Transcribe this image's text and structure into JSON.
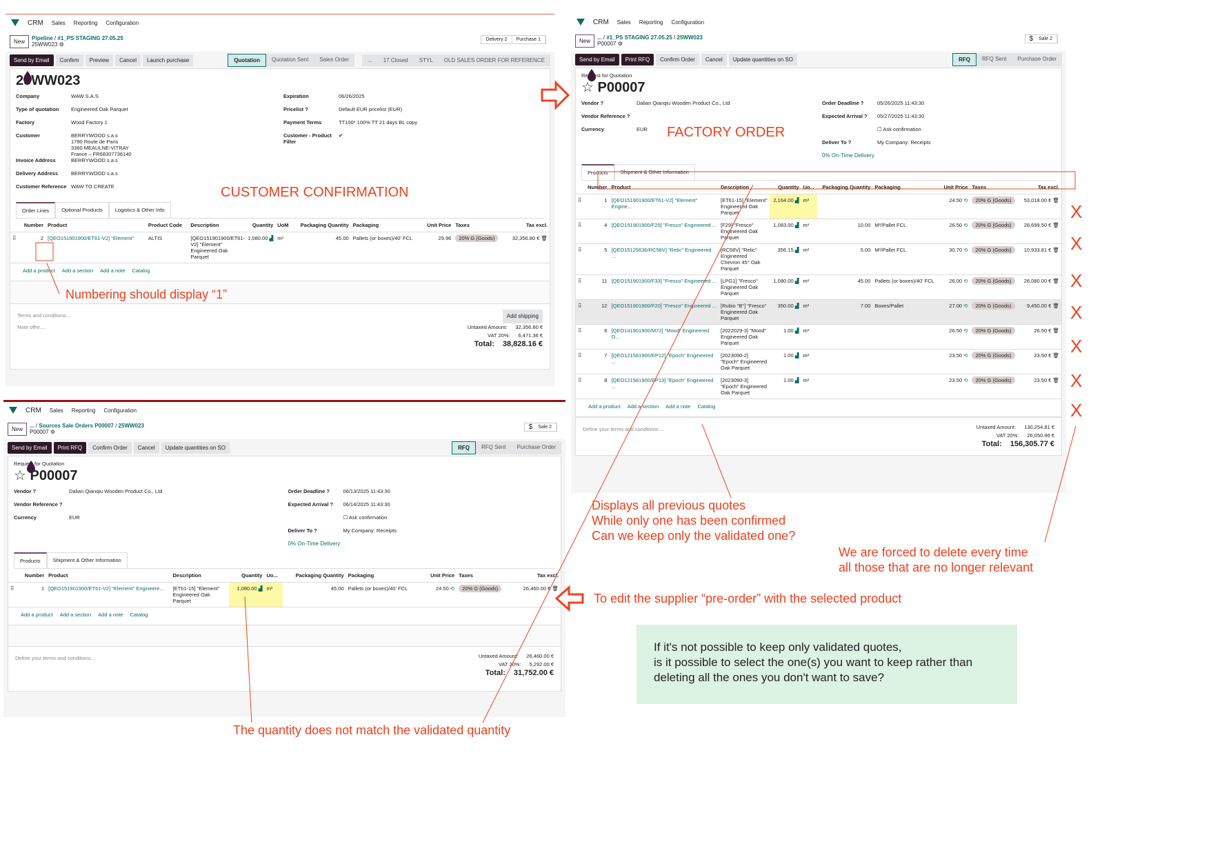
{
  "nav": {
    "app": "CRM",
    "items": [
      "Sales",
      "Reporting",
      "Configuration"
    ]
  },
  "so": {
    "new": "New",
    "crumbs": [
      "Pipeline",
      "#1_PS STAGING 27.05.25"
    ],
    "record": "25WW023",
    "smart": [
      "Delivery 2",
      "Purchase 1"
    ],
    "actions": [
      "Send by Email",
      "Confirm",
      "Preview",
      "Cancel",
      "Launch purchase"
    ],
    "status": [
      "Quotation",
      "Quotation Sent",
      "Sales Order"
    ],
    "status2": [
      "...",
      "17.Closed",
      "STYL",
      "OLD SALES ORDER FOR REFERENCE"
    ],
    "title": "25WW023",
    "left": [
      [
        "Company",
        "WAW S.A.S"
      ],
      [
        "Type of quotation",
        "Engineered Oak Parquet"
      ],
      [
        "Factory",
        "Wood Factory 1"
      ],
      [
        "Customer",
        "BERRYWOOD s.a.s\n1790 Route de Paris\n3360 MEAULNE-VITRAY\nFrance – FR68307736140"
      ],
      [
        "Invoice Address",
        "BERRYWOOD s.a.s"
      ],
      [
        "Delivery Address",
        "BERRYWOOD s.a.s"
      ],
      [
        "Customer Reference",
        "WAW TO CREATE"
      ]
    ],
    "right": [
      [
        "Expiration",
        "06/26/2025"
      ],
      [
        "Pricelist ?",
        "Default EUR pricelist (EUR)"
      ],
      [
        "Payment Terms",
        "TT100* 100% TT 21 days BL copy"
      ],
      [
        "Customer - Product Filter",
        "✔"
      ]
    ],
    "tabs": [
      "Order Lines",
      "Optional Products",
      "Logistics & Other Info"
    ],
    "columns": [
      "Number",
      "Product",
      "Product Code",
      "Description",
      "Quantity",
      "UoM",
      "Packaging Quantity",
      "Packaging",
      "Unit Price",
      "Taxes",
      "Tax excl."
    ],
    "rows": [
      [
        "2",
        "[QEO151901900/ET61-V2] \"Element\"",
        "ALTIS",
        "[QEO151901900/ET61-V2] \"Element\" Engineered Oak Parquet",
        "1,080.00",
        "m²",
        "45.00",
        "Pallets (or boxes)/40' FCL",
        "29.96",
        "20% G (Goods)",
        "32,356.80 €"
      ]
    ],
    "add": [
      "Add a product",
      "Add a section",
      "Add a note",
      "Catalog"
    ],
    "add_shipping": "Add shipping",
    "terms": "Terms and conditions...",
    "note": "Note offre....",
    "totals": [
      [
        "Untaxed Amount:",
        "32,356.80 €"
      ],
      [
        "VAT 20%:",
        "6,471.36 €"
      ],
      [
        "Total:",
        "38,828.16 €"
      ]
    ]
  },
  "po1": {
    "new": "New",
    "crumbs": [
      "...",
      "#1_PS STAGING 27.05.25",
      "25WW023"
    ],
    "record": "P00007",
    "smart": "Sale 2",
    "actions": [
      "Send by Email",
      "Print RFQ",
      "Confirm Order",
      "Cancel",
      "Update quantities on SO"
    ],
    "status": [
      "RFQ",
      "RFQ Sent",
      "Purchase Order"
    ],
    "subtitle": "Request for Quotation",
    "title": "P00007",
    "left": [
      [
        "Vendor ?",
        "Dalian Qianqiu Wooden Product Co., Ltd"
      ],
      [
        "Vendor Reference ?",
        ""
      ],
      [
        "Currency",
        "EUR"
      ]
    ],
    "right": [
      [
        "Order Deadline ?",
        "05/26/2025 11:43:30"
      ],
      [
        "Expected Arrival ?",
        "05/27/2025 11:43:30"
      ],
      [
        "",
        "☐ Ask confirmation"
      ],
      [
        "Deliver To ?",
        "My Company: Receipts"
      ]
    ],
    "ontime": "0% On-Time Delivery",
    "tabs": [
      "Products",
      "Shipment & Other Information"
    ],
    "columns": [
      "Number",
      "Product",
      "Description",
      "Quantity",
      "Uo...",
      "Packaging Quantity",
      "Packaging",
      "Unit Price",
      "Taxes",
      "Tax excl."
    ],
    "rows": [
      [
        "1",
        "[QEO151901900/ET61-V2] \"Element\" Engine...",
        "[ET61-15] \"Element\" Engineered Oak Parquet",
        "2,164.00",
        "m²",
        "",
        "",
        "24.50",
        "20% G (Goods)",
        "53,018.00 €"
      ],
      [
        "4",
        "[QEO151901900/F29] \"Fresco\" Engineered ...",
        "[F29] \"Fresco\" Engineered Oak Parquet",
        "1,083.00",
        "m²",
        "10.00",
        "M²/Pallet FCL",
        "26.50",
        "20% G (Goods)",
        "28,699.50 €"
      ],
      [
        "5",
        "[QEO15125636/RC58V] \"Relic\" Engineered ...",
        "[RC58V] \"Relic\" Engineered Chevron 45° Oak Parquet",
        "356.15",
        "m²",
        "5.00",
        "M²/Pallet FCL",
        "30.70",
        "20% G (Goods)",
        "10,933.81 €"
      ],
      [
        "11",
        "[QEO151901900/F33] \"Fresco\" Engineered ...",
        "[LPG1] \"Fresco\" Engineered Oak Parquet",
        "1,080.00",
        "m²",
        "45.00",
        "Pallets (or boxes)/40' FCL",
        "26.00",
        "20% G (Goods)",
        "28,080.00 €"
      ],
      [
        "12",
        "[QEO151901900/F20] \"Fresco\" Engineered ...",
        "[Rubio \"B\"] \"Fresco\" Engineered Oak Parquet",
        "350.00",
        "m²",
        "7.00",
        "Boxes/Pallet",
        "27.00",
        "20% G (Goods)",
        "9,450.00 €"
      ],
      [
        "6",
        "[QEO141901900/M72] \"Mood\" Engineered O...",
        "[2022029-3] \"Mood\" Engineered Oak Parquet",
        "1.00",
        "m²",
        "",
        "",
        "26.50",
        "20% G (Goods)",
        "26.50 €"
      ],
      [
        "7",
        "[QEO121581900/EP12] \"Epoch\" Engineered ...",
        "[2023090-2] \"Epoch\" Engineered Oak Parquet",
        "1.00",
        "m²",
        "",
        "",
        "23.50",
        "20% G (Goods)",
        "23.50 €"
      ],
      [
        "8",
        "[QEO121581900/EP13] \"Epoch\" Engineered ...",
        "[2023090-3] \"Epoch\" Engineered Oak Parquet",
        "1.00",
        "m²",
        "",
        "",
        "23.50",
        "20% G (Goods)",
        "23.50 €"
      ]
    ],
    "add": [
      "Add a product",
      "Add a section",
      "Add a note",
      "Catalog"
    ],
    "terms": "Define your terms and conditions ...",
    "totals": [
      [
        "Untaxed Amount:",
        "130,254.81 €"
      ],
      [
        "VAT 20%:",
        "26,050.96 €"
      ],
      [
        "Total:",
        "156,305.77 €"
      ]
    ]
  },
  "po2": {
    "new": "New",
    "crumbs": [
      "...",
      "Sources Sale Orders P00007",
      "25WW023"
    ],
    "record": "P00007",
    "smart": "Sale 2",
    "actions": [
      "Send by Email",
      "Print RFQ",
      "Confirm Order",
      "Cancel",
      "Update quantities on SO"
    ],
    "status": [
      "RFQ",
      "RFQ Sent",
      "Purchase Order"
    ],
    "subtitle": "Request for Quotation",
    "title": "P00007",
    "left": [
      [
        "Vendor ?",
        "Dalian Qianqiu Wooden Product Co., Ltd"
      ],
      [
        "Vendor Reference ?",
        ""
      ],
      [
        "Currency",
        "EUR"
      ]
    ],
    "right": [
      [
        "Order Deadline ?",
        "06/13/2025 11:43:30"
      ],
      [
        "Expected Arrival ?",
        "06/14/2025 11:43:30"
      ],
      [
        "",
        "☐ Ask confirmation"
      ],
      [
        "Deliver To ?",
        "My Company: Receipts"
      ]
    ],
    "ontime": "0% On-Time Delivery",
    "tabs": [
      "Products",
      "Shipment & Other Information"
    ],
    "columns": [
      "Number",
      "Product",
      "Description",
      "Quantity",
      "Uo...",
      "Packaging Quantity",
      "Packaging",
      "Unit Price",
      "Taxes",
      "Tax excl."
    ],
    "rows": [
      [
        "1",
        "[QEO151901900/ET61-V2] \"Element\" Engineere...",
        "[ET61-15] \"Element\" Engineered Oak Parquet",
        "1,080.00",
        "m²",
        "45.00",
        "Pallets (or boxes)/40' FCL",
        "24.50",
        "20% G (Goods)",
        "26,460.00 €"
      ]
    ],
    "add": [
      "Add a product",
      "Add a section",
      "Add a note",
      "Catalog"
    ],
    "terms": "Define your terms and conditions ...",
    "totals": [
      [
        "Untaxed Amount:",
        "26,460.00 €"
      ],
      [
        "VAT 20%:",
        "5,292.00 €"
      ],
      [
        "Total:",
        "31,752.00 €"
      ]
    ]
  },
  "annotations": {
    "customer": "CUSTOMER CONFIRMATION",
    "numbering": "Numbering should display “1”",
    "factory": "FACTORY ORDER",
    "previous": "Displays all previous quotes\nWhile only one has been confirmed\nCan we keep only the validated one?",
    "delete": "We are forced to delete every time\nall those that are no longer relevant",
    "edit": "To edit the supplier “pre-order” with the selected product",
    "quantity": "The quantity does not match the validated quantity",
    "question": "If it's not possible to keep only validated quotes,\nis it possible to select the one(s) you want to keep rather than\ndeleting all the ones you don't want to save?",
    "x_mark": "X"
  },
  "colors": {
    "annotation": "#f2411f",
    "brand": "#714b67",
    "link": "#0b6e63",
    "highlight": "#fdf9a4",
    "note_box": "#dcf2e3"
  }
}
